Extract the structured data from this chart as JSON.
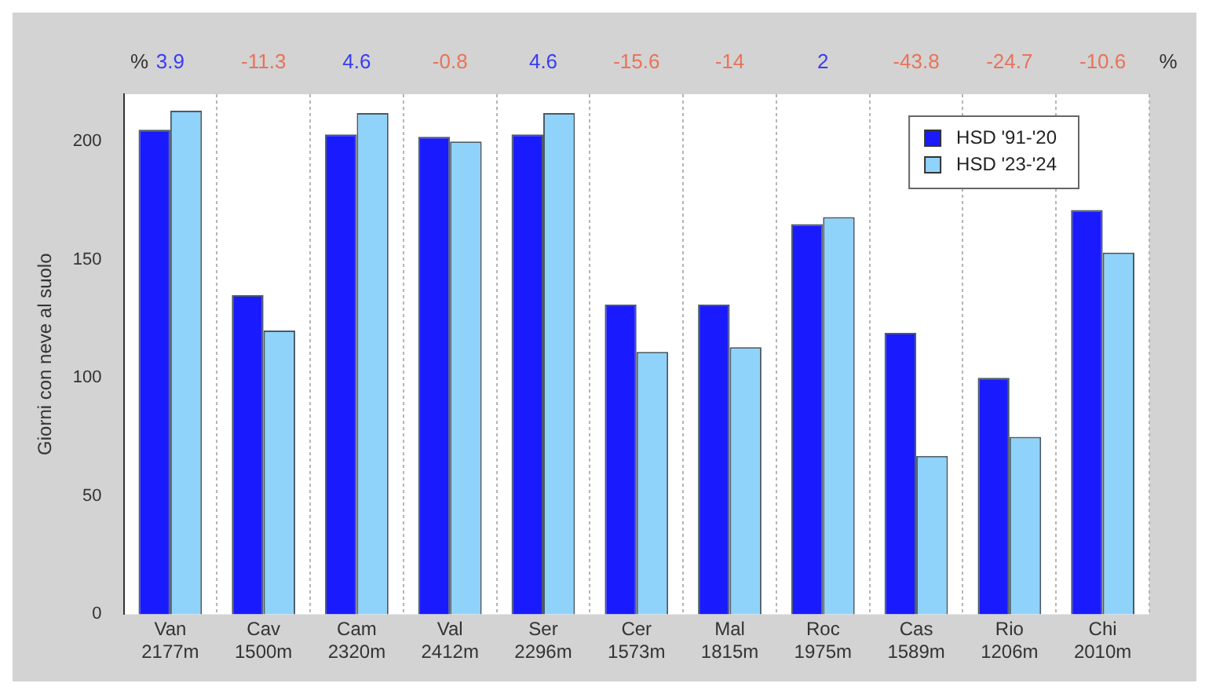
{
  "chart_data": {
    "type": "bar",
    "ylabel": "Giorni con neve al suolo",
    "categories": [
      "Van\n2177m",
      "Cav\n1500m",
      "Cam\n2320m",
      "Val\n2412m",
      "Ser\n2296m",
      "Cer\n1573m",
      "Mal\n1815m",
      "Roc\n1975m",
      "Cas\n1589m",
      "Rio\n1206m",
      "Chi\n2010m"
    ],
    "series": [
      {
        "name": "HSD '91-'20",
        "color": "#1a1aff",
        "values": [
          205,
          135,
          203,
          202,
          203,
          131,
          131,
          165,
          119,
          100,
          171
        ]
      },
      {
        "name": "HSD '23-'24",
        "color": "#8fd3fb",
        "values": [
          213,
          120,
          212,
          200,
          212,
          111,
          113,
          168,
          67,
          75,
          153
        ]
      }
    ],
    "ylim": [
      0,
      220
    ],
    "yticks": [
      0,
      50,
      100,
      150,
      200
    ],
    "grid": "x",
    "legend": "top right",
    "annotations": [
      "%",
      "3.9",
      "-11.3",
      "4.6",
      "-0.8",
      "4.6",
      "-15.6",
      "-14",
      "2",
      "-43.8",
      "-24.7",
      "-10.6",
      "%"
    ]
  }
}
